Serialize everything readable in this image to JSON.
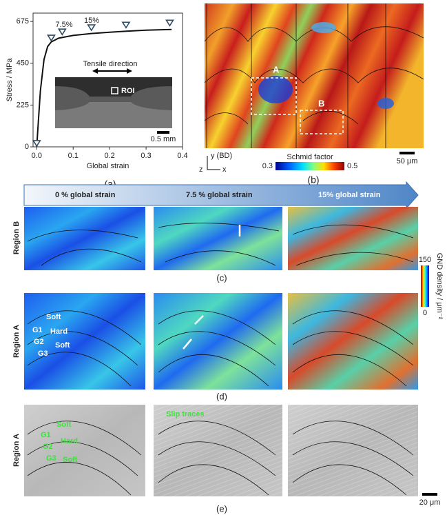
{
  "chart_data": {
    "type": "line",
    "panel_label": "(a)",
    "x_label": "Global strain",
    "y_label": "Stress / MPa",
    "xlim": [
      -0.01,
      0.4
    ],
    "ylim": [
      0,
      720
    ],
    "xticks": [
      {
        "value": 0,
        "label": "0.0"
      },
      {
        "value": 0.1,
        "label": "0.1"
      },
      {
        "value": 0.2,
        "label": "0.2"
      },
      {
        "value": 0.3,
        "label": "0.3"
      },
      {
        "value": 0.4,
        "label": "0.4"
      }
    ],
    "yticks": [
      0,
      225,
      450,
      675
    ],
    "series": [
      {
        "color": "#111111",
        "x": [
          0,
          0.005,
          0.01,
          0.02,
          0.03,
          0.04,
          0.06,
          0.1,
          0.15,
          0.2,
          0.25,
          0.3,
          0.37
        ],
        "values": [
          0,
          150,
          300,
          470,
          540,
          565,
          585,
          600,
          610,
          617,
          623,
          628,
          632
        ]
      },
      {
        "color": "#2f4b63",
        "marker": "triangle-down",
        "x": [
          0,
          0.04,
          0.07,
          0.15,
          0.245,
          0.365
        ],
        "values": [
          19,
          586,
          619,
          642,
          656,
          667
        ]
      }
    ],
    "annotations": [
      "7.5%",
      "15%"
    ],
    "inset": {
      "title": "Tensile direction",
      "roi": "ROI",
      "scale_bar": "0.5 mm"
    }
  },
  "panel_b": {
    "label": "(b)",
    "regions": [
      "A",
      "B"
    ],
    "axis_y": "y (BD)",
    "axis_z": "z",
    "axis_x": "x",
    "colorbar_title": "Schmid factor",
    "colorbar_min": "0.3",
    "colorbar_max": "0.5",
    "scale_bar": "50 μm"
  },
  "strain_steps": [
    "0 % global strain",
    "7.5 % global strain",
    "15% global strain"
  ],
  "panel_c": {
    "label": "(c)",
    "row_label": "Region B"
  },
  "gnd_colorbar": {
    "title": "GND density / μm⁻²",
    "max": "150",
    "min": "0"
  },
  "panel_d": {
    "label": "(d)",
    "row_label": "Region A",
    "grain_labels": [
      "Soft",
      "G1",
      "Hard",
      "G2",
      "Soft",
      "G3"
    ]
  },
  "panel_e": {
    "label": "(e)",
    "row_label": "Region A",
    "slip_label": "Slip traces",
    "grain_labels": [
      "Soft",
      "G1",
      "Hard",
      "G2",
      "G3",
      "Soft"
    ],
    "scale_bar": "20 μm"
  }
}
